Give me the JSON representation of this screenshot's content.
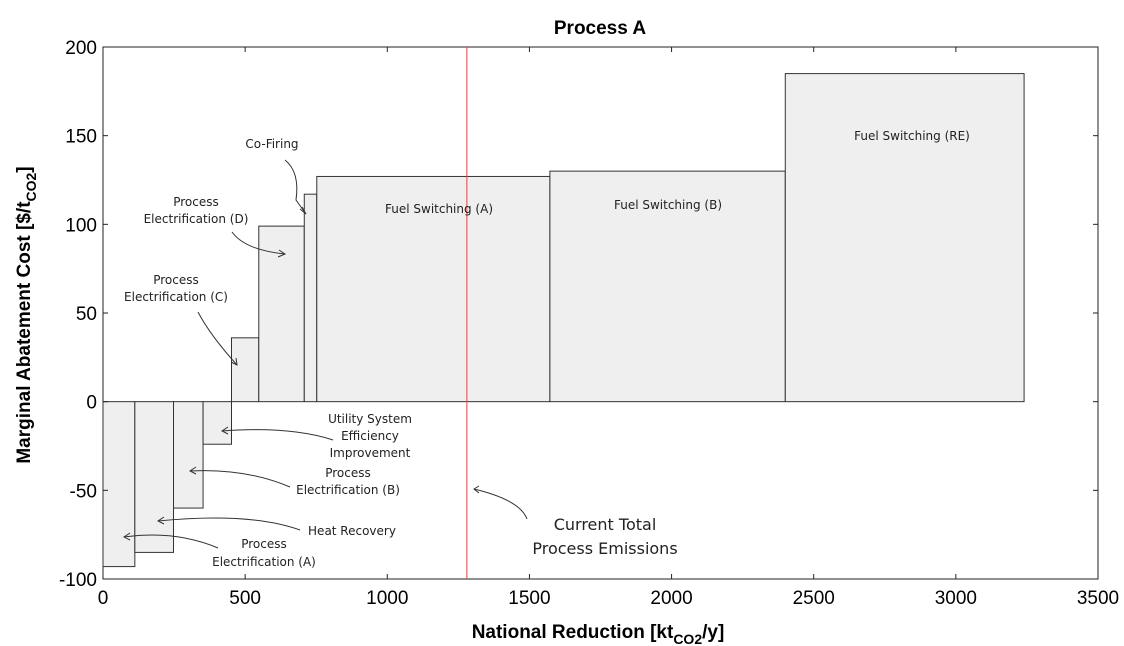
{
  "chart_data": {
    "type": "bar",
    "title": "Process A",
    "xlabel": "National Reduction [kt",
    "xlabel_sub": "CO2",
    "xlabel_tail": "/y]",
    "ylabel": "Marginal Abatement Cost [$/t",
    "ylabel_sub": "CO2",
    "ylabel_tail": "]",
    "xlim": [
      0,
      3500
    ],
    "ylim": [
      -100,
      200
    ],
    "xticks": [
      0,
      500,
      1000,
      1500,
      2000,
      2500,
      3000,
      3500
    ],
    "yticks": [
      -100,
      -50,
      0,
      50,
      100,
      150,
      200
    ],
    "grid": false,
    "bars": [
      {
        "label": "Process Electrification (A)",
        "x_start": 0,
        "x_end": 112,
        "value": -93
      },
      {
        "label": "Heat Recovery",
        "x_start": 112,
        "x_end": 248,
        "value": -85
      },
      {
        "label": "Process Electrification (B)",
        "x_start": 248,
        "x_end": 352,
        "value": -60
      },
      {
        "label": "Utility System Efficiency Improvement",
        "x_start": 352,
        "x_end": 452,
        "value": -24
      },
      {
        "label": "Process Electrification (C)",
        "x_start": 452,
        "x_end": 548,
        "value": 36
      },
      {
        "label": "Process Electrification (D)",
        "x_start": 548,
        "x_end": 708,
        "value": 99
      },
      {
        "label": "Co-Firing",
        "x_start": 708,
        "x_end": 752,
        "value": 117
      },
      {
        "label": "Fuel Switching (A)",
        "x_start": 752,
        "x_end": 1572,
        "value": 127
      },
      {
        "label": "Fuel Switching (B)",
        "x_start": 1572,
        "x_end": 2400,
        "value": 130
      },
      {
        "label": "Fuel Switching (RE)",
        "x_start": 2400,
        "x_end": 3240,
        "value": 185
      }
    ],
    "reference_line": {
      "x": 1280,
      "color": "#e8413c",
      "label_line1": "Current Total",
      "label_line2": "Process Emissions"
    },
    "annotations": {
      "co_firing": "Co-Firing",
      "ped_line1": "Process",
      "ped_line2": "Electrification (D)",
      "pec_line1": "Process",
      "pec_line2": "Electrification (C)",
      "use_line1": "Utility System",
      "use_line2": "Efficiency",
      "use_line3": "Improvement",
      "peb_line1": "Process",
      "peb_line2": "Electrification (B)",
      "hr": "Heat Recovery",
      "pea_line1": "Process",
      "pea_line2": "Electrification (A)",
      "fsa": "Fuel Switching (A)",
      "fsb": "Fuel Switching (B)",
      "fsre": "Fuel Switching (RE)"
    }
  }
}
